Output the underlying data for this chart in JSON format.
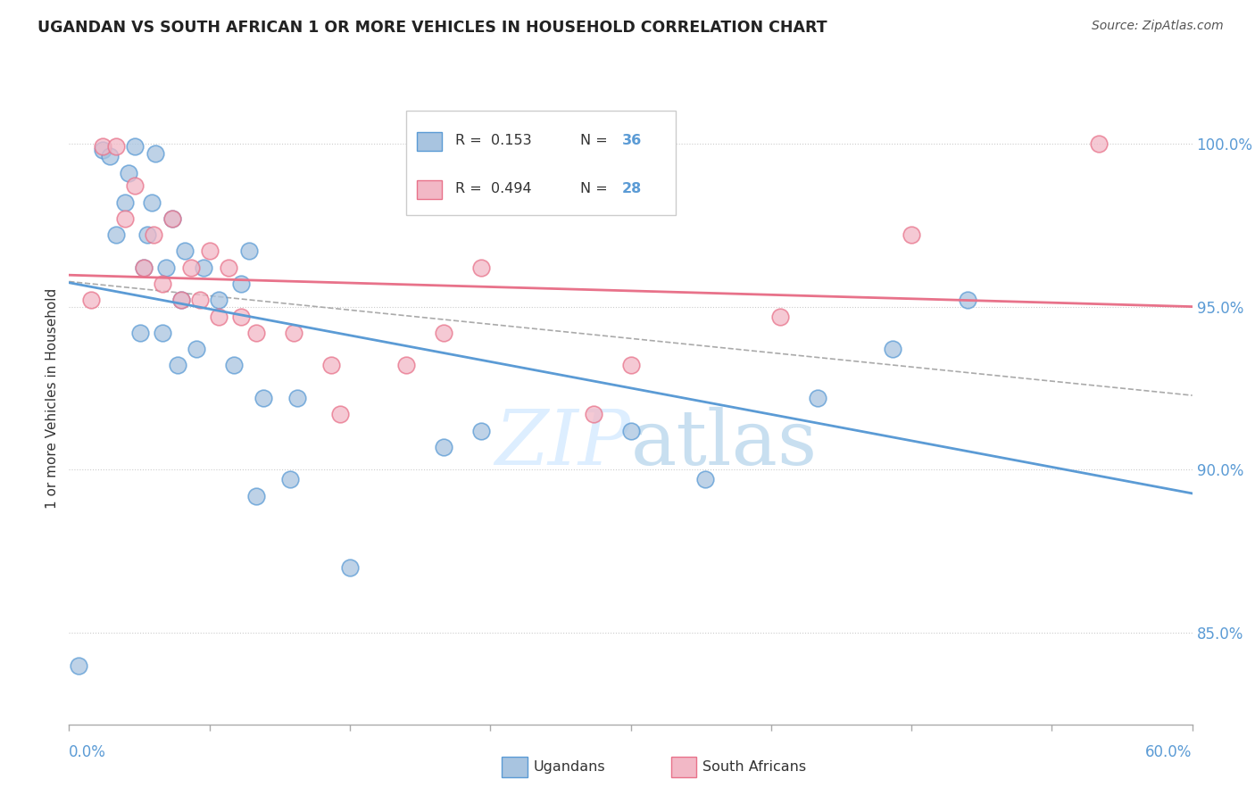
{
  "title": "UGANDAN VS SOUTH AFRICAN 1 OR MORE VEHICLES IN HOUSEHOLD CORRELATION CHART",
  "source": "Source: ZipAtlas.com",
  "ylabel_label": "1 or more Vehicles in Household",
  "ytick_labels": [
    "100.0%",
    "95.0%",
    "90.0%",
    "85.0%"
  ],
  "ytick_values": [
    1.0,
    0.95,
    0.9,
    0.85
  ],
  "xlim": [
    0.0,
    0.6
  ],
  "ylim": [
    0.822,
    1.022
  ],
  "R_ugandan": 0.153,
  "N_ugandan": 36,
  "R_sa": 0.494,
  "N_sa": 28,
  "ugandan_color": "#a8c4e0",
  "sa_color": "#f2b8c6",
  "ugandan_line_color": "#5b9bd5",
  "sa_line_color": "#e8728a",
  "legend_label_ugandan": "Ugandans",
  "legend_label_sa": "South Africans",
  "ugandan_x": [
    0.005,
    0.018,
    0.022,
    0.025,
    0.03,
    0.032,
    0.035,
    0.038,
    0.04,
    0.042,
    0.044,
    0.046,
    0.05,
    0.052,
    0.055,
    0.058,
    0.06,
    0.062,
    0.068,
    0.072,
    0.08,
    0.088,
    0.092,
    0.096,
    0.1,
    0.104,
    0.118,
    0.122,
    0.15,
    0.2,
    0.22,
    0.3,
    0.34,
    0.4,
    0.44,
    0.48
  ],
  "ugandan_y": [
    0.84,
    0.998,
    0.996,
    0.972,
    0.982,
    0.991,
    0.999,
    0.942,
    0.962,
    0.972,
    0.982,
    0.997,
    0.942,
    0.962,
    0.977,
    0.932,
    0.952,
    0.967,
    0.937,
    0.962,
    0.952,
    0.932,
    0.957,
    0.967,
    0.892,
    0.922,
    0.897,
    0.922,
    0.87,
    0.907,
    0.912,
    0.912,
    0.897,
    0.922,
    0.937,
    0.952
  ],
  "sa_x": [
    0.012,
    0.018,
    0.025,
    0.03,
    0.035,
    0.04,
    0.045,
    0.05,
    0.055,
    0.06,
    0.065,
    0.07,
    0.075,
    0.08,
    0.085,
    0.092,
    0.1,
    0.12,
    0.14,
    0.145,
    0.18,
    0.2,
    0.22,
    0.28,
    0.3,
    0.38,
    0.45,
    0.55
  ],
  "sa_y": [
    0.952,
    0.999,
    0.999,
    0.977,
    0.987,
    0.962,
    0.972,
    0.957,
    0.977,
    0.952,
    0.962,
    0.952,
    0.967,
    0.947,
    0.962,
    0.947,
    0.942,
    0.942,
    0.932,
    0.917,
    0.932,
    0.942,
    0.962,
    0.917,
    0.932,
    0.947,
    0.972,
    1.0
  ],
  "background_color": "#ffffff",
  "grid_color": "#cccccc",
  "title_color": "#222222",
  "axis_label_color": "#5b9bd5",
  "watermark_color": "#ddeeff",
  "watermark_text": "ZIPatlas"
}
